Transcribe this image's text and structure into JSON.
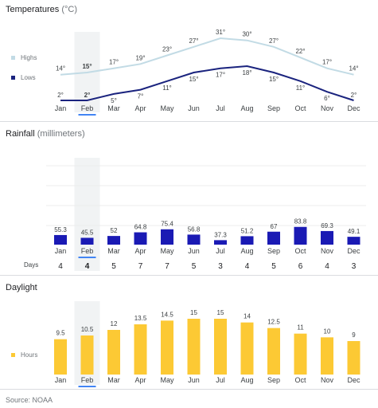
{
  "source_text": "Source: NOAA",
  "colors": {
    "highs": "#c2dbe5",
    "lows": "#1a237e",
    "rainfall": "#1a1ab4",
    "daylight": "#fcc934",
    "highlight_col": "#f1f3f4",
    "selected_underline": "#4285f4"
  },
  "months": [
    "Jan",
    "Feb",
    "Mar",
    "Apr",
    "May",
    "Jun",
    "Jul",
    "Aug",
    "Sep",
    "Oct",
    "Nov",
    "Dec"
  ],
  "selected_month": "Feb",
  "chart_data": [
    {
      "type": "line",
      "title": "Temperatures",
      "unit": "(°C)",
      "categories": [
        "Jan",
        "Feb",
        "Mar",
        "Apr",
        "May",
        "Jun",
        "Jul",
        "Aug",
        "Sep",
        "Oct",
        "Nov",
        "Dec"
      ],
      "series": [
        {
          "name": "Highs",
          "color": "#c2dbe5",
          "values": [
            14,
            15,
            17,
            19,
            23,
            27,
            31,
            30,
            27,
            22,
            17,
            14
          ]
        },
        {
          "name": "Lows",
          "color": "#1a237e",
          "values": [
            2,
            2,
            5,
            7,
            11,
            15,
            17,
            18,
            15,
            11,
            6,
            2
          ]
        }
      ],
      "value_suffix": "°",
      "legend": "left"
    },
    {
      "type": "bar",
      "title": "Rainfall",
      "unit": "(millimeters)",
      "categories": [
        "Jan",
        "Feb",
        "Mar",
        "Apr",
        "May",
        "Jun",
        "Jul",
        "Aug",
        "Sep",
        "Oct",
        "Nov",
        "Dec"
      ],
      "values": [
        55.3,
        45.5,
        52,
        64.8,
        75.4,
        56.8,
        37.3,
        51.2,
        67,
        83.8,
        69.3,
        49.1
      ],
      "days_label": "Days",
      "days": [
        4,
        4,
        5,
        7,
        7,
        5,
        3,
        4,
        5,
        6,
        4,
        3
      ]
    },
    {
      "type": "bar",
      "title": "Daylight",
      "unit": "",
      "categories": [
        "Jan",
        "Feb",
        "Mar",
        "Apr",
        "May",
        "Jun",
        "Jul",
        "Aug",
        "Sep",
        "Oct",
        "Nov",
        "Dec"
      ],
      "series": [
        {
          "name": "Hours",
          "color": "#fcc934",
          "values": [
            9.5,
            10.5,
            12,
            13.5,
            14.5,
            15,
            15,
            14,
            12.5,
            11,
            10,
            9
          ]
        }
      ],
      "legend": "left"
    }
  ]
}
